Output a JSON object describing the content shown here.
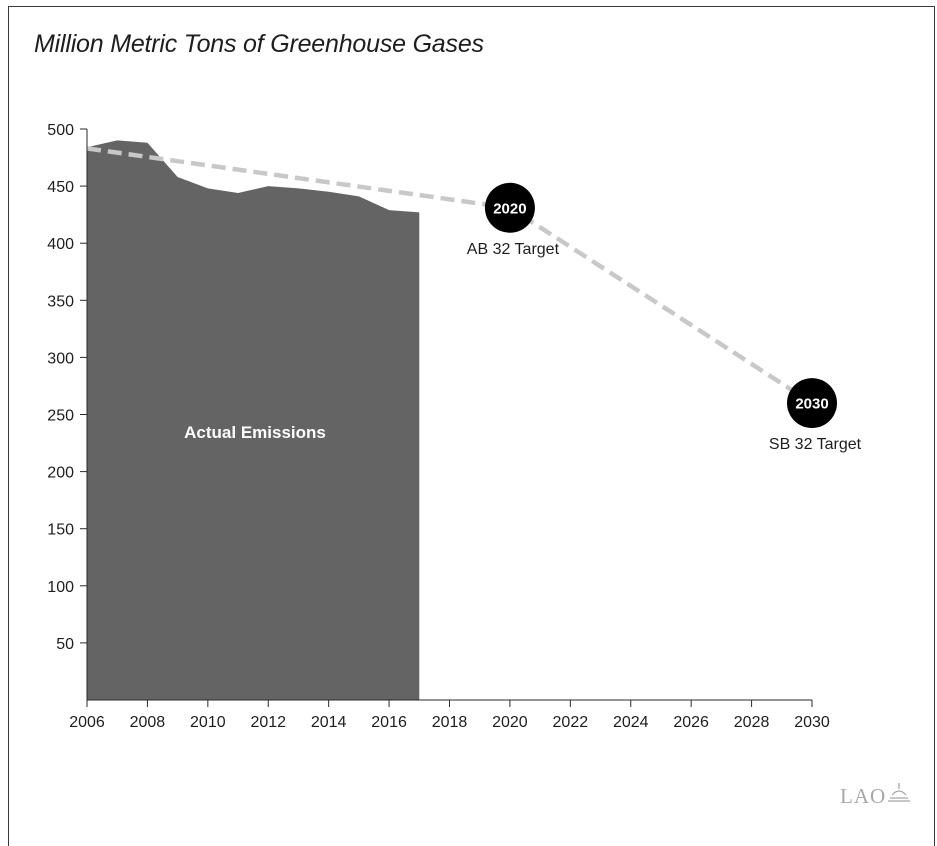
{
  "chart_data": {
    "type": "area",
    "title": "Million Metric Tons of Greenhouse Gases",
    "xlabel": "",
    "ylabel": "",
    "xlim": [
      2006,
      2030
    ],
    "ylim": [
      0,
      500
    ],
    "x_ticks": [
      2006,
      2008,
      2010,
      2012,
      2014,
      2016,
      2018,
      2020,
      2022,
      2024,
      2026,
      2028,
      2030
    ],
    "y_ticks": [
      50,
      100,
      150,
      200,
      250,
      300,
      350,
      400,
      450,
      500
    ],
    "grid": false,
    "series": [
      {
        "name": "Actual Emissions",
        "type": "area",
        "color": "#646464",
        "x": [
          2006,
          2007,
          2008,
          2009,
          2010,
          2011,
          2012,
          2013,
          2014,
          2015,
          2016,
          2017
        ],
        "values": [
          484,
          490,
          488,
          458,
          448,
          444,
          450,
          448,
          445,
          441,
          429,
          427
        ]
      },
      {
        "type": "dashed-line",
        "color": "#c8c8c8",
        "x": [
          2006,
          2020,
          2030
        ],
        "values": [
          483,
          431,
          260
        ]
      }
    ],
    "markers": [
      {
        "x": 2020,
        "y": 431,
        "label": "2020",
        "caption": "AB 32 Target"
      },
      {
        "x": 2030,
        "y": 260,
        "label": "2030",
        "caption": "SB 32 Target"
      }
    ]
  },
  "logo": {
    "text": "LAO"
  }
}
